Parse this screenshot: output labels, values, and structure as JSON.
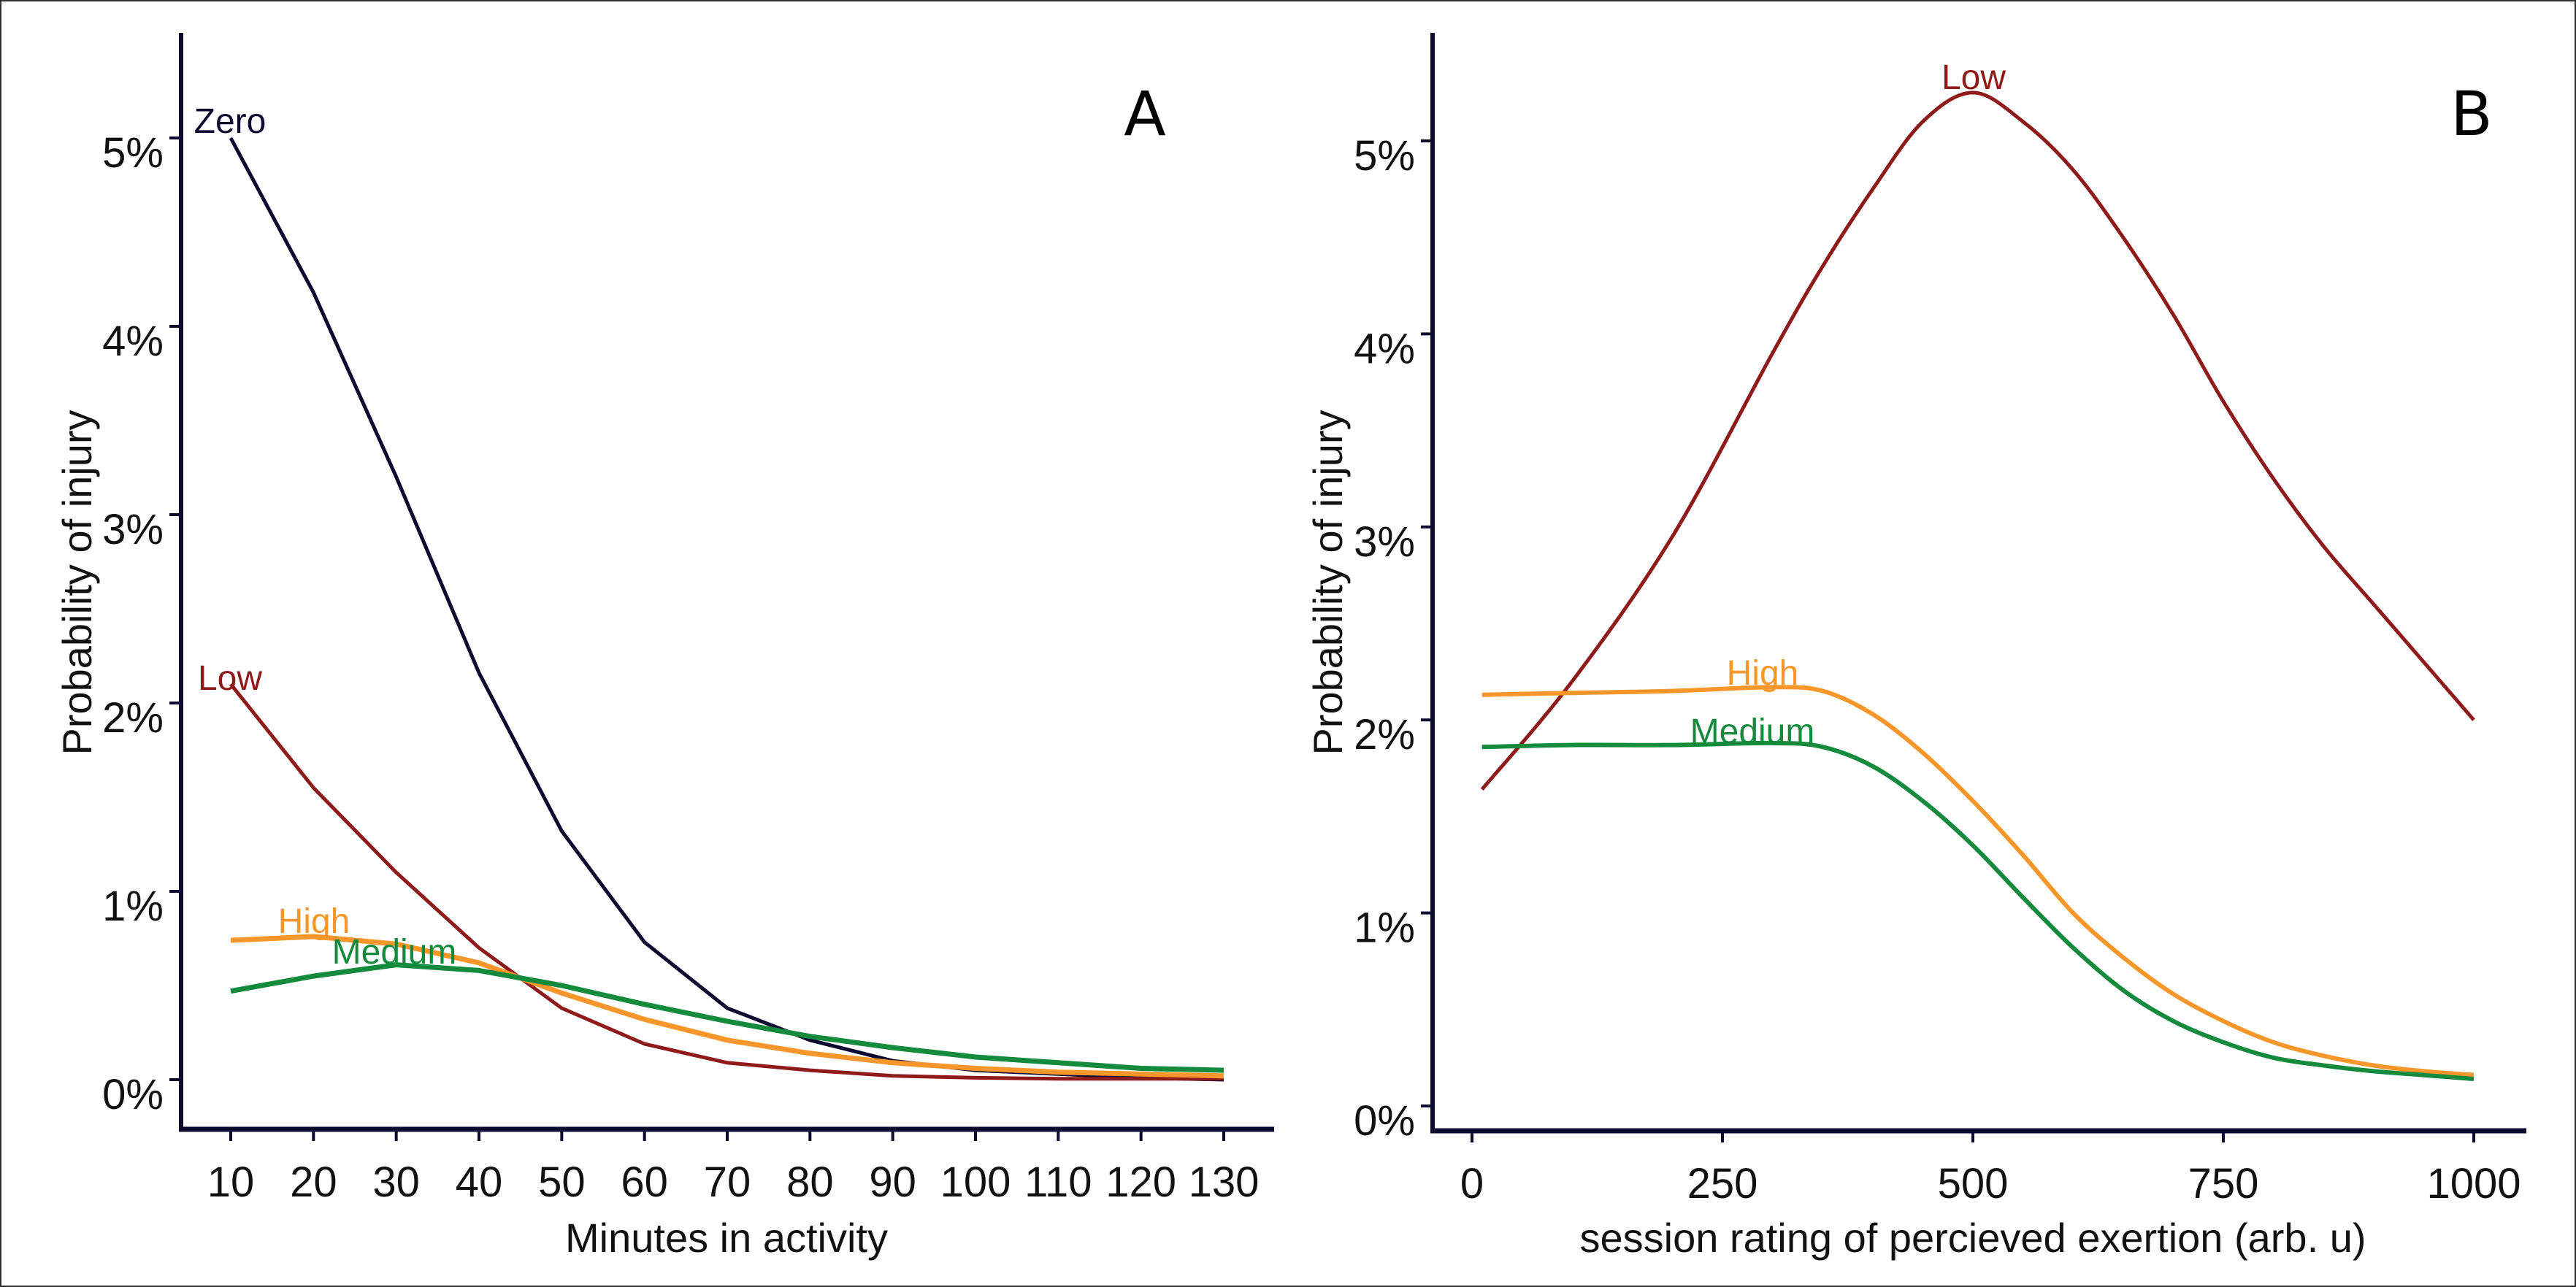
{
  "chart_data": [
    {
      "type": "line",
      "panel": "A",
      "panel_label": "A",
      "xlabel": "Minutes in activity",
      "ylabel": "Probability of injury",
      "xlim": [
        10,
        130
      ],
      "ylim": [
        0,
        5.5
      ],
      "x_ticks": [
        10,
        20,
        30,
        40,
        50,
        60,
        70,
        80,
        90,
        100,
        110,
        120,
        130
      ],
      "y_ticks": [
        0,
        1,
        2,
        3,
        4,
        5
      ],
      "y_tick_labels": [
        "0%",
        "1%",
        "2%",
        "3%",
        "4%",
        "5%"
      ],
      "grid": false,
      "x": [
        10,
        20,
        30,
        40,
        50,
        60,
        70,
        80,
        90,
        100,
        110,
        120,
        130
      ],
      "series": [
        {
          "name": "Zero",
          "label": "Zero",
          "color": "#0d0a30",
          "values": [
            5.0,
            4.18,
            3.2,
            2.16,
            1.32,
            0.73,
            0.38,
            0.21,
            0.1,
            0.05,
            0.03,
            0.01,
            0.0
          ]
        },
        {
          "name": "Low",
          "label": "Low",
          "color": "#8e1a1a",
          "values": [
            2.1,
            1.55,
            1.1,
            0.7,
            0.38,
            0.19,
            0.09,
            0.05,
            0.02,
            0.01,
            0.005,
            0.005,
            0.005
          ]
        },
        {
          "name": "High",
          "label": "High",
          "color": "#f7962a",
          "values": [
            0.74,
            0.76,
            0.72,
            0.62,
            0.46,
            0.32,
            0.21,
            0.14,
            0.09,
            0.06,
            0.04,
            0.03,
            0.02
          ]
        },
        {
          "name": "Medium",
          "label": "Medium",
          "color": "#148a3c",
          "values": [
            0.47,
            0.55,
            0.61,
            0.58,
            0.5,
            0.4,
            0.31,
            0.23,
            0.17,
            0.12,
            0.09,
            0.06,
            0.05
          ]
        }
      ]
    },
    {
      "type": "line",
      "panel": "B",
      "panel_label": "B",
      "xlabel": "session rating of percieved exertion (arb. u)",
      "ylabel": "Probability of injury",
      "xlim": [
        0,
        1000
      ],
      "ylim": [
        0,
        5.5
      ],
      "x_ticks": [
        0,
        250,
        500,
        750,
        1000
      ],
      "y_ticks": [
        0,
        1,
        2,
        3,
        4,
        5
      ],
      "y_tick_labels": [
        "0%",
        "1%",
        "2%",
        "3%",
        "4%",
        "5%"
      ],
      "grid": false,
      "x": [
        10,
        100,
        200,
        300,
        350,
        400,
        450,
        500,
        550,
        600,
        650,
        700,
        750,
        800,
        850,
        900,
        950,
        1000
      ],
      "series": [
        {
          "name": "Low",
          "label": "Low",
          "color": "#8e1a1a",
          "values": [
            1.64,
            2.2,
            2.95,
            3.9,
            4.35,
            4.75,
            5.1,
            5.25,
            5.1,
            4.85,
            4.5,
            4.1,
            3.65,
            3.25,
            2.9,
            2.6,
            2.3,
            2.0
          ]
        },
        {
          "name": "High",
          "label": "High",
          "color": "#f7962a",
          "values": [
            2.13,
            2.14,
            2.15,
            2.17,
            2.15,
            2.03,
            1.83,
            1.58,
            1.3,
            1.0,
            0.77,
            0.58,
            0.44,
            0.33,
            0.26,
            0.21,
            0.18,
            0.16
          ]
        },
        {
          "name": "Medium",
          "label": "Medium",
          "color": "#148a3c",
          "values": [
            1.86,
            1.87,
            1.87,
            1.88,
            1.86,
            1.76,
            1.58,
            1.35,
            1.08,
            0.82,
            0.6,
            0.44,
            0.33,
            0.25,
            0.21,
            0.18,
            0.16,
            0.14
          ]
        }
      ]
    }
  ]
}
